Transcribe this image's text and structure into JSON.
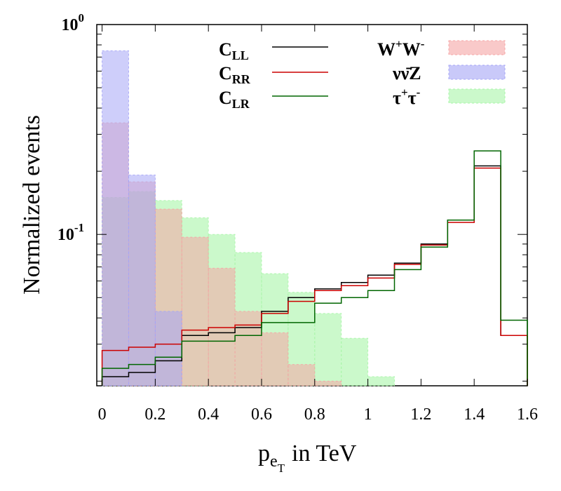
{
  "chart_data": {
    "type": "histogram",
    "xlabel": "p",
    "xlabel_sub": "e",
    "xlabel_subsub": "T",
    "xlabel_suffix": "in TeV",
    "ylabel": "Normalized events",
    "yscale": "log",
    "xlim": [
      -0.02,
      1.6
    ],
    "ylim": [
      0.019,
      1.0
    ],
    "xticks": [
      {
        "value": 0,
        "label": "0"
      },
      {
        "value": 0.2,
        "label": "0.2"
      },
      {
        "value": 0.4,
        "label": "0.4"
      },
      {
        "value": 0.6,
        "label": "0.6"
      },
      {
        "value": 0.8,
        "label": "0.8"
      },
      {
        "value": 1.0,
        "label": "1"
      },
      {
        "value": 1.2,
        "label": "1.2"
      },
      {
        "value": 1.4,
        "label": "1.4"
      },
      {
        "value": 1.6,
        "label": "1.6"
      }
    ],
    "yticks": [
      {
        "value": 1.0,
        "base": "10",
        "exp": "0"
      },
      {
        "value": 0.1,
        "base": "10",
        "exp": "-1"
      }
    ],
    "bin_edges": [
      0,
      0.1,
      0.2,
      0.3,
      0.4,
      0.5,
      0.6,
      0.7,
      0.8,
      0.9,
      1.0,
      1.1,
      1.2,
      1.3,
      1.4,
      1.5,
      1.6
    ],
    "filled_series": [
      {
        "name": "τ⁺τ⁻",
        "label_main": "τ",
        "label_sup1": "+",
        "label_mid": "τ",
        "label_sup2": "-",
        "fill": "#a8f5a8",
        "opacity": 0.6,
        "values": [
          0.15,
          0.16,
          0.145,
          0.12,
          0.1,
          0.082,
          0.065,
          0.053,
          0.042,
          0.032,
          0.021,
          null,
          null,
          null,
          null,
          null
        ]
      },
      {
        "name": "W⁺W⁻",
        "label_main": "W",
        "label_sup1": "+",
        "label_mid": "W",
        "label_sup2": "-",
        "fill": "#f5a5a5",
        "opacity": 0.55,
        "values": [
          0.34,
          0.178,
          0.132,
          0.097,
          0.069,
          0.043,
          0.034,
          0.024,
          0.02,
          null,
          null,
          null,
          null,
          null,
          null,
          null
        ]
      },
      {
        "name": "νν̄Z",
        "label_main": "νν̄Z",
        "fill": "#a5a5f5",
        "opacity": 0.55,
        "values": [
          0.75,
          0.192,
          0.043,
          null,
          null,
          null,
          null,
          null,
          null,
          null,
          null,
          null,
          null,
          null,
          null,
          null
        ]
      }
    ],
    "line_series": [
      {
        "name": "CLL",
        "label_main": "C",
        "label_sub": "LL",
        "color": "#000000",
        "values": [
          0.021,
          0.022,
          0.025,
          0.033,
          0.034,
          0.036,
          0.043,
          0.05,
          0.055,
          0.059,
          0.064,
          0.073,
          0.09,
          0.117,
          0.212,
          0.033
        ]
      },
      {
        "name": "CRR",
        "label_main": "C",
        "label_sub": "RR",
        "color": "#cc0000",
        "values": [
          0.028,
          0.029,
          0.03,
          0.035,
          0.036,
          0.037,
          0.042,
          0.048,
          0.054,
          0.057,
          0.062,
          0.072,
          0.089,
          0.114,
          0.207,
          0.033
        ]
      },
      {
        "name": "CLR",
        "label_main": "C",
        "label_sub": "LR",
        "color": "#006600",
        "values": [
          0.023,
          0.024,
          0.026,
          0.031,
          0.031,
          0.033,
          0.038,
          0.038,
          0.047,
          0.05,
          0.054,
          0.068,
          0.087,
          0.117,
          0.25,
          0.039
        ]
      }
    ]
  }
}
